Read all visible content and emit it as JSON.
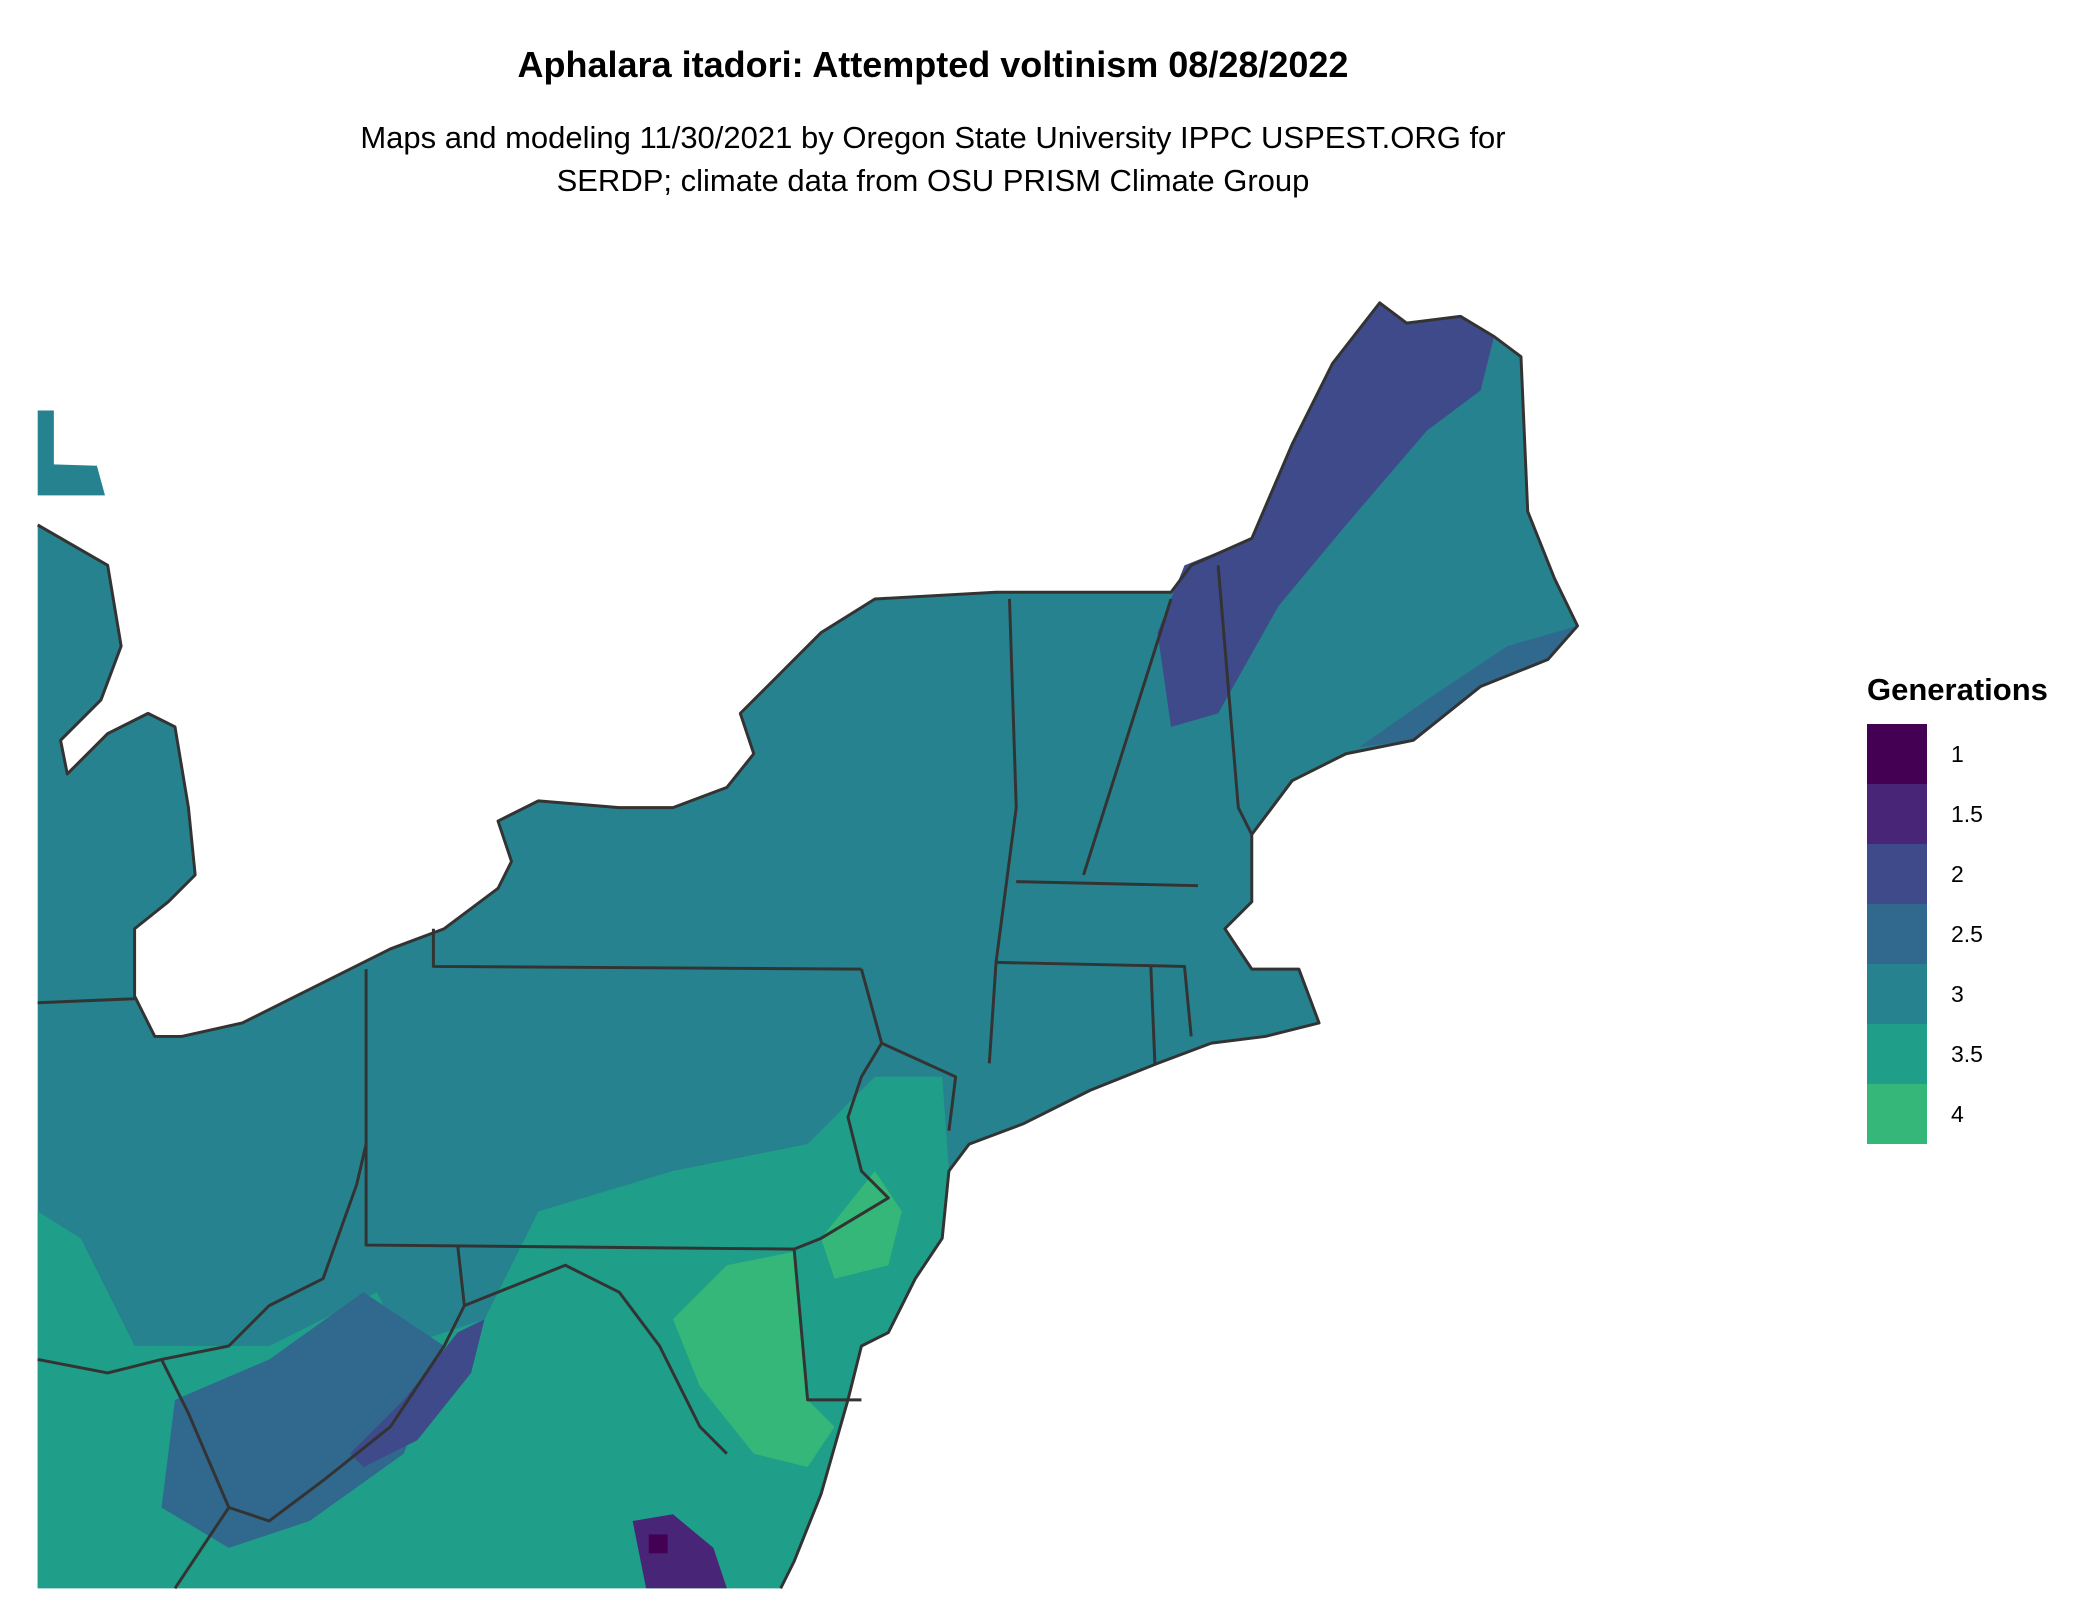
{
  "title": "Aphalara itadori: Attempted voltinism 08/28/2022",
  "subtitle_line1": "Maps and modeling 11/30/2021 by Oregon State University IPPC USPEST.ORG for",
  "subtitle_line2": "SERDP; climate data from OSU PRISM Climate Group",
  "legend": {
    "title": "Generations",
    "placement": "right",
    "items": [
      {
        "label": "1",
        "color": "#440154"
      },
      {
        "label": "1.5",
        "color": "#482576"
      },
      {
        "label": "2",
        "color": "#3e4a89"
      },
      {
        "label": "2.5",
        "color": "#31688e"
      },
      {
        "label": "3",
        "color": "#26828e"
      },
      {
        "label": "3.5",
        "color": "#1f9e89"
      },
      {
        "label": "4",
        "color": "#35b779"
      }
    ]
  },
  "map": {
    "region": "Northeastern United States",
    "border_color": "#333333",
    "dominant_value": "3"
  }
}
